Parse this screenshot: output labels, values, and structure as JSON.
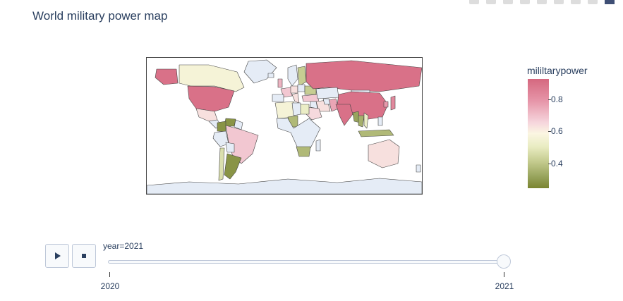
{
  "title": "World military power map",
  "colorbar": {
    "title": "mililtarypower",
    "ticks": [
      "0.8",
      "0.6",
      "0.4"
    ],
    "colors": [
      "#d5687f",
      "#e695a8",
      "#f6d6dd",
      "#fbf6e2",
      "#e9ecc2",
      "#c3ca8d",
      "#96a25a",
      "#7a8430"
    ]
  },
  "colors": {
    "no_data": "#e5ecf6",
    "border": "#444444"
  },
  "modebar": {
    "icons": [
      "camera-icon",
      "download-icon",
      "box-select-icon",
      "lasso-icon",
      "zoom-in-icon",
      "zoom-out-icon",
      "autoscale-icon",
      "reset-icon",
      "plotly-logo-icon"
    ]
  },
  "animation": {
    "play_icon": "play-icon",
    "stop_icon": "stop-icon",
    "current_label": "year=2021",
    "steps": [
      "2020",
      "2021"
    ],
    "current_step": "2021"
  },
  "chart_data": {
    "type": "choropleth",
    "title": "World military power map",
    "color_variable": "mililtarypower",
    "color_range": [
      0.25,
      0.92
    ],
    "frame": "year=2021",
    "regions": [
      {
        "name": "United States",
        "value": 0.9
      },
      {
        "name": "Alaska",
        "value": 0.9
      },
      {
        "name": "Canada",
        "value": 0.6
      },
      {
        "name": "Mexico",
        "value": 0.7
      },
      {
        "name": "Colombia",
        "value": 0.3
      },
      {
        "name": "Venezuela",
        "value": 0.3
      },
      {
        "name": "Brazil",
        "value": 0.75
      },
      {
        "name": "Argentina",
        "value": 0.3
      },
      {
        "name": "Chile",
        "value": 0.5
      },
      {
        "name": "Russia",
        "value": 0.9
      },
      {
        "name": "China",
        "value": 0.9
      },
      {
        "name": "India",
        "value": 0.9
      },
      {
        "name": "Iran",
        "value": 0.7
      },
      {
        "name": "Saudi Arabia",
        "value": 0.72
      },
      {
        "name": "Turkey",
        "value": 0.75
      },
      {
        "name": "Egypt",
        "value": 0.55
      },
      {
        "name": "Algeria",
        "value": 0.6
      },
      {
        "name": "Nigeria",
        "value": 0.4
      },
      {
        "name": "South Africa",
        "value": 0.4
      },
      {
        "name": "Ukraine",
        "value": 0.45
      },
      {
        "name": "Sweden",
        "value": 0.45
      },
      {
        "name": "Germany",
        "value": 0.7
      },
      {
        "name": "France",
        "value": 0.75
      },
      {
        "name": "United Kingdom",
        "value": 0.78
      },
      {
        "name": "Italy",
        "value": 0.7
      },
      {
        "name": "Pakistan",
        "value": 0.8
      },
      {
        "name": "Myanmar",
        "value": 0.35
      },
      {
        "name": "Thailand",
        "value": 0.38
      },
      {
        "name": "Vietnam",
        "value": 0.55
      },
      {
        "name": "Indonesia",
        "value": 0.4
      },
      {
        "name": "Japan",
        "value": 0.85
      },
      {
        "name": "South Korea",
        "value": 0.82
      },
      {
        "name": "Australia",
        "value": 0.7
      }
    ]
  }
}
